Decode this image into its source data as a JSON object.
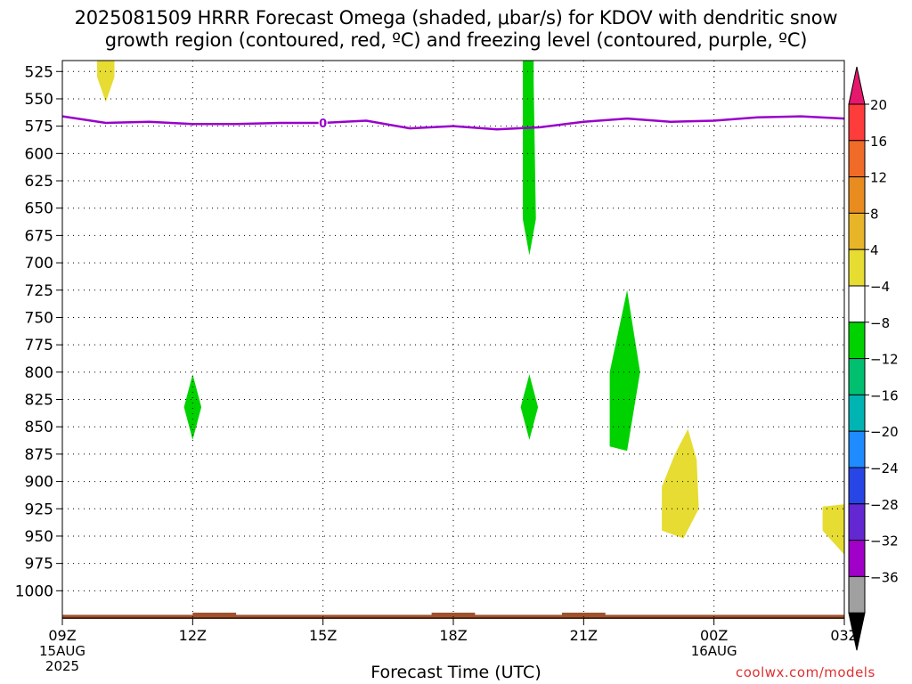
{
  "title_line1": "2025081509 HRRR Forecast Omega (shaded, μbar/s) for KDOV with dendritic snow",
  "title_line2": "growth region (contoured, red, ºC) and freezing level (contoured, purple, ºC)",
  "xlabel": "Forecast Time (UTC)",
  "credit": "coolwx.com/models",
  "chart_data": {
    "type": "time-height",
    "x_ticks": [
      {
        "hour": 0,
        "label": "09Z",
        "sub1": "15AUG",
        "sub2": "2025"
      },
      {
        "hour": 3,
        "label": "12Z",
        "sub1": "",
        "sub2": ""
      },
      {
        "hour": 6,
        "label": "15Z",
        "sub1": "",
        "sub2": ""
      },
      {
        "hour": 9,
        "label": "18Z",
        "sub1": "",
        "sub2": ""
      },
      {
        "hour": 12,
        "label": "21Z",
        "sub1": "",
        "sub2": ""
      },
      {
        "hour": 15,
        "label": "00Z",
        "sub1": "16AUG",
        "sub2": ""
      },
      {
        "hour": 18,
        "label": "03Z",
        "sub1": "",
        "sub2": ""
      }
    ],
    "x_range_hours": [
      0,
      18
    ],
    "y_ticks_hpa": [
      525,
      550,
      575,
      600,
      625,
      650,
      675,
      700,
      725,
      750,
      775,
      800,
      825,
      850,
      875,
      900,
      925,
      950,
      975,
      1000
    ],
    "y_range_hpa": [
      515,
      1025
    ],
    "grid": true,
    "freezing_level": {
      "color": "#9900cc",
      "label": "0",
      "label_hour": 6,
      "points": [
        [
          0,
          566
        ],
        [
          1,
          572
        ],
        [
          2,
          571
        ],
        [
          3,
          573
        ],
        [
          4,
          573
        ],
        [
          5,
          572
        ],
        [
          6,
          572
        ],
        [
          7,
          570
        ],
        [
          8,
          577
        ],
        [
          9,
          575
        ],
        [
          10,
          578
        ],
        [
          11,
          576
        ],
        [
          12,
          571
        ],
        [
          13,
          568
        ],
        [
          14,
          571
        ],
        [
          15,
          570
        ],
        [
          16,
          567
        ],
        [
          17,
          566
        ],
        [
          18,
          568
        ]
      ]
    },
    "omega_areas": [
      {
        "color": "#e6dc32",
        "bin": "4 to 8",
        "points": [
          [
            0.8,
            515
          ],
          [
            1.2,
            515
          ],
          [
            1.2,
            530
          ],
          [
            1.0,
            553
          ],
          [
            0.8,
            530
          ]
        ]
      },
      {
        "color": "#00d200",
        "bin": "-8 to -4",
        "points": [
          [
            10.6,
            515
          ],
          [
            10.85,
            515
          ],
          [
            10.85,
            535
          ],
          [
            10.9,
            660
          ],
          [
            10.75,
            693
          ],
          [
            10.6,
            660
          ],
          [
            10.6,
            535
          ]
        ]
      },
      {
        "color": "#00d200",
        "bin": "-8 to -4",
        "points": [
          [
            3.0,
            802
          ],
          [
            3.2,
            832
          ],
          [
            3.0,
            862
          ],
          [
            2.8,
            832
          ]
        ]
      },
      {
        "color": "#00d200",
        "bin": "-8 to -4",
        "points": [
          [
            10.75,
            802
          ],
          [
            10.95,
            832
          ],
          [
            10.75,
            862
          ],
          [
            10.55,
            832
          ]
        ]
      },
      {
        "color": "#00d200",
        "bin": "-8 to -4",
        "points": [
          [
            13.0,
            725
          ],
          [
            13.3,
            800
          ],
          [
            13.0,
            872
          ],
          [
            12.6,
            868
          ],
          [
            12.6,
            800
          ]
        ]
      },
      {
        "color": "#e6dc32",
        "bin": "4 to 8",
        "points": [
          [
            14.4,
            852
          ],
          [
            14.6,
            880
          ],
          [
            14.65,
            925
          ],
          [
            14.3,
            952
          ],
          [
            13.8,
            945
          ],
          [
            13.8,
            905
          ],
          [
            14.1,
            875
          ]
        ]
      },
      {
        "color": "#e6dc32",
        "bin": "4 to 8",
        "points": [
          [
            17.5,
            923
          ],
          [
            18.0,
            921
          ],
          [
            18.0,
            967
          ],
          [
            17.5,
            945
          ]
        ]
      }
    ],
    "terrain": {
      "color": "#a0522d",
      "top_hpa": 1022,
      "bump_hours": [
        [
          3.0,
          4.0
        ],
        [
          8.5,
          9.5
        ],
        [
          11.5,
          12.5
        ]
      ],
      "bump_hpa": 1020
    }
  },
  "colorbar": {
    "labels": [
      "20",
      "16",
      "12",
      "8",
      "4",
      "−4",
      "−8",
      "−12",
      "−16",
      "−20",
      "−24",
      "−28",
      "−32",
      "−36"
    ],
    "colors": [
      "#ff3c3c",
      "#f06a28",
      "#e88c20",
      "#e8b428",
      "#e6dc32",
      "#ffffff",
      "#00d200",
      "#00c070",
      "#00b4b4",
      "#1e8cff",
      "#2846e6",
      "#6428d2",
      "#a000c8",
      "#a0a0a0"
    ],
    "top_arrow_color": "#e6186e",
    "bottom_arrow_color": "#000000"
  }
}
